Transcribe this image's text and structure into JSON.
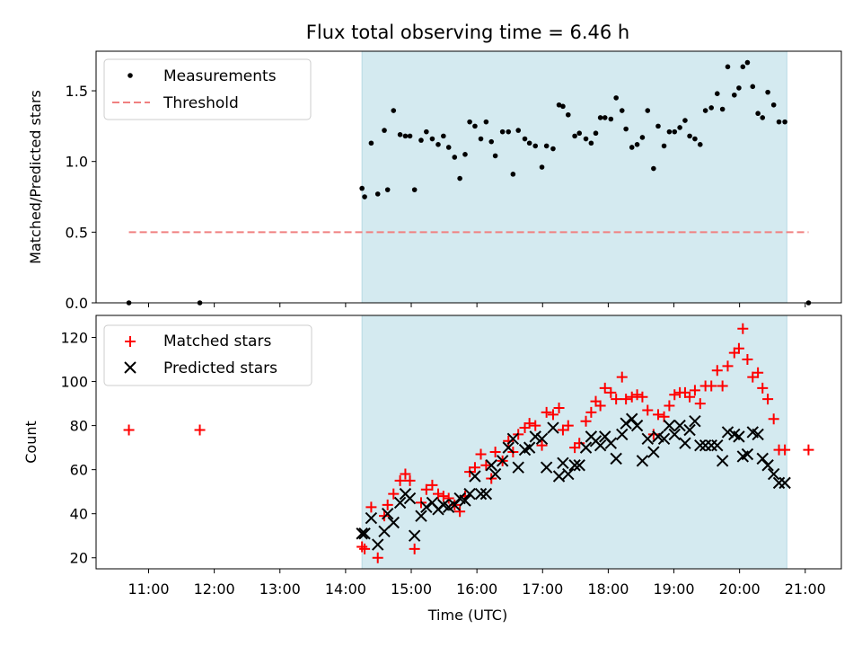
{
  "chart_data": [
    {
      "type": "scatter",
      "title": "Flux total observing time = 6.46 h",
      "ylabel": "Matched/Predicted stars",
      "xlim": [
        10.2,
        21.55
      ],
      "ylim": [
        0,
        1.78
      ],
      "yticks": [
        0.0,
        0.5,
        1.0,
        1.5
      ],
      "ytick_labels": [
        "0.0",
        "0.5",
        "1.0",
        "1.5"
      ],
      "legend": {
        "position": "upper left",
        "entries": [
          "Measurements",
          "Threshold"
        ]
      },
      "shaded_span": {
        "from": 14.25,
        "to": 20.72,
        "color": "#add8e6"
      },
      "threshold": {
        "label": "Threshold",
        "value": 0.5,
        "from": 10.7,
        "to": 21.05,
        "color": "#f08080"
      },
      "series": [
        {
          "name": "Measurements",
          "marker": "dot",
          "color": "#000000",
          "x": [
            10.7,
            11.78,
            14.25,
            14.29,
            14.39,
            14.49,
            14.59,
            14.64,
            14.73,
            14.83,
            14.91,
            14.98,
            15.05,
            15.15,
            15.23,
            15.32,
            15.41,
            15.49,
            15.57,
            15.66,
            15.74,
            15.82,
            15.89,
            15.97,
            16.06,
            16.14,
            16.22,
            16.28,
            16.39,
            16.48,
            16.55,
            16.63,
            16.73,
            16.8,
            16.89,
            16.99,
            17.06,
            17.16,
            17.25,
            17.31,
            17.39,
            17.49,
            17.56,
            17.66,
            17.74,
            17.81,
            17.88,
            17.95,
            18.04,
            18.12,
            18.21,
            18.27,
            18.36,
            18.44,
            18.52,
            18.6,
            18.69,
            18.76,
            18.85,
            18.93,
            19.01,
            19.09,
            19.17,
            19.24,
            19.32,
            19.4,
            19.48,
            19.57,
            19.66,
            19.74,
            19.82,
            19.92,
            19.99,
            20.05,
            20.12,
            20.2,
            20.28,
            20.35,
            20.43,
            20.52,
            20.6,
            20.69,
            21.05
          ],
          "y": [
            0.0,
            0.0,
            0.81,
            0.75,
            1.13,
            0.77,
            1.22,
            0.8,
            1.36,
            1.19,
            1.18,
            1.18,
            0.8,
            1.15,
            1.21,
            1.16,
            1.12,
            1.18,
            1.1,
            1.03,
            0.88,
            1.05,
            1.28,
            1.25,
            1.16,
            1.28,
            1.14,
            1.04,
            1.21,
            1.21,
            0.91,
            1.22,
            1.16,
            1.13,
            1.11,
            0.96,
            1.11,
            1.09,
            1.4,
            1.39,
            1.33,
            1.18,
            1.2,
            1.16,
            1.13,
            1.2,
            1.31,
            1.31,
            1.3,
            1.45,
            1.36,
            1.23,
            1.1,
            1.12,
            1.17,
            1.36,
            0.95,
            1.25,
            1.11,
            1.21,
            1.21,
            1.24,
            1.29,
            1.18,
            1.16,
            1.12,
            1.36,
            1.38,
            1.48,
            1.37,
            1.67,
            1.47,
            1.52,
            1.67,
            1.7,
            1.53,
            1.34,
            1.31,
            1.49,
            1.4,
            1.28,
            1.28,
            0.0
          ]
        }
      ]
    },
    {
      "type": "scatter",
      "xlabel": "Time (UTC)",
      "ylabel": "Count",
      "xlim": [
        10.2,
        21.55
      ],
      "ylim": [
        15,
        130
      ],
      "xticks": [
        11,
        12,
        13,
        14,
        15,
        16,
        17,
        18,
        19,
        20,
        21
      ],
      "xtick_labels": [
        "11:00",
        "12:00",
        "13:00",
        "14:00",
        "15:00",
        "16:00",
        "17:00",
        "18:00",
        "19:00",
        "20:00",
        "21:00"
      ],
      "yticks": [
        20,
        40,
        60,
        80,
        100,
        120
      ],
      "ytick_labels": [
        "20",
        "40",
        "60",
        "80",
        "100",
        "120"
      ],
      "legend": {
        "position": "upper left",
        "entries": [
          "Matched stars",
          "Predicted stars"
        ]
      },
      "shaded_span": {
        "from": 14.25,
        "to": 20.72,
        "color": "#add8e6"
      },
      "series": [
        {
          "name": "Matched stars",
          "marker": "plus",
          "color": "#ff0000",
          "x": [
            10.7,
            11.78,
            14.25,
            14.29,
            14.39,
            14.49,
            14.59,
            14.64,
            14.73,
            14.83,
            14.91,
            14.98,
            15.05,
            15.15,
            15.23,
            15.32,
            15.41,
            15.49,
            15.57,
            15.66,
            15.74,
            15.82,
            15.89,
            15.97,
            16.06,
            16.14,
            16.22,
            16.28,
            16.39,
            16.48,
            16.55,
            16.63,
            16.73,
            16.8,
            16.89,
            16.99,
            17.06,
            17.16,
            17.25,
            17.31,
            17.39,
            17.49,
            17.56,
            17.66,
            17.74,
            17.81,
            17.88,
            17.95,
            18.04,
            18.12,
            18.21,
            18.27,
            18.36,
            18.44,
            18.52,
            18.6,
            18.69,
            18.76,
            18.85,
            18.93,
            19.01,
            19.09,
            19.17,
            19.24,
            19.32,
            19.4,
            19.48,
            19.57,
            19.66,
            19.74,
            19.82,
            19.92,
            19.99,
            20.05,
            20.12,
            20.2,
            20.28,
            20.35,
            20.43,
            20.52,
            20.6,
            20.69,
            21.05
          ],
          "y": [
            78,
            78,
            25,
            24,
            43,
            20,
            39,
            44,
            49,
            55,
            58,
            55,
            24,
            45,
            51,
            53,
            49,
            48,
            47,
            44,
            41,
            48,
            59,
            61,
            67,
            62,
            56,
            68,
            64,
            73,
            68,
            76,
            79,
            81,
            80,
            71,
            86,
            85,
            88,
            78,
            80,
            70,
            72,
            82,
            86,
            91,
            89,
            97,
            95,
            92,
            102,
            92,
            93,
            94,
            93,
            87,
            76,
            85,
            84,
            89,
            94,
            95,
            95,
            93,
            96,
            90,
            98,
            98,
            105,
            98,
            107,
            113,
            115,
            124,
            110,
            102,
            104,
            97,
            92,
            83,
            69,
            69,
            69
          ]
        },
        {
          "name": "Predicted stars",
          "marker": "x",
          "color": "#000000",
          "x": [
            14.25,
            14.29,
            14.39,
            14.49,
            14.59,
            14.64,
            14.73,
            14.83,
            14.91,
            14.98,
            15.05,
            15.15,
            15.23,
            15.32,
            15.41,
            15.49,
            15.57,
            15.66,
            15.74,
            15.82,
            15.89,
            15.97,
            16.06,
            16.14,
            16.22,
            16.28,
            16.39,
            16.48,
            16.55,
            16.63,
            16.73,
            16.8,
            16.89,
            16.99,
            17.06,
            17.16,
            17.25,
            17.31,
            17.39,
            17.49,
            17.56,
            17.66,
            17.74,
            17.81,
            17.88,
            17.95,
            18.04,
            18.12,
            18.21,
            18.27,
            18.36,
            18.44,
            18.52,
            18.6,
            18.69,
            18.76,
            18.85,
            18.93,
            19.01,
            19.09,
            19.17,
            19.24,
            19.32,
            19.4,
            19.48,
            19.57,
            19.66,
            19.74,
            19.82,
            19.92,
            19.99,
            20.05,
            20.12,
            20.2,
            20.28,
            20.35,
            20.43,
            20.52,
            20.6,
            20.69
          ],
          "y": [
            31,
            31,
            38,
            26,
            32,
            40,
            36,
            45,
            49,
            47,
            30,
            39,
            43,
            45,
            42,
            44,
            43,
            44,
            47,
            46,
            49,
            57,
            49,
            49,
            62,
            58,
            64,
            70,
            74,
            61,
            69,
            70,
            75,
            74,
            61,
            79,
            57,
            63,
            58,
            62,
            62,
            70,
            75,
            73,
            71,
            75,
            72,
            65,
            76,
            81,
            83,
            80,
            64,
            74,
            68,
            75,
            74,
            80,
            76,
            80,
            72,
            78,
            82,
            71,
            71,
            71,
            71,
            64,
            77,
            76,
            75,
            66,
            67,
            77,
            76,
            65,
            62,
            58,
            54,
            54
          ]
        }
      ]
    }
  ]
}
